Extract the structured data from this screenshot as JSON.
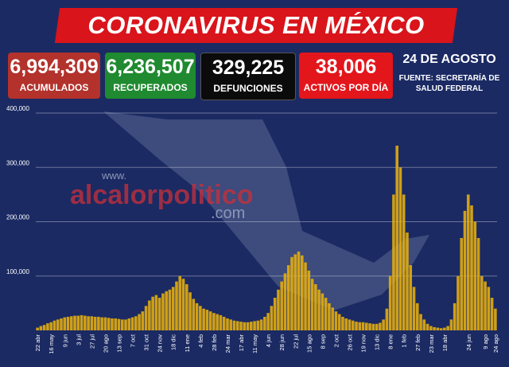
{
  "header": {
    "title": "CORONAVIRUS EN MÉXICO"
  },
  "stats": [
    {
      "value": "6,994,309",
      "label": "ACUMULADOS",
      "color": "#b3322c"
    },
    {
      "value": "6,236,507",
      "label": "RECUPERADOS",
      "color": "#1f8a2f"
    },
    {
      "value": "329,225",
      "label": "DEFUNCIONES",
      "color": "#0b0b0b"
    },
    {
      "value": "38,006",
      "label": "ACTIVOS POR DÍA",
      "color": "#e3161c"
    }
  ],
  "date": "24 DE AGOSTO",
  "source": "FUENTE: SECRETARÍA DE SALUD FEDERAL",
  "watermark": {
    "prefix": "www.",
    "name": "alcalorpolitico",
    "suffix": ".com"
  },
  "chart_data": {
    "type": "bar",
    "color": "#e8b10c",
    "grid": true,
    "ylim": [
      0,
      400000
    ],
    "yticks": [
      {
        "value": 100000,
        "label": "100,000"
      },
      {
        "value": 200000,
        "label": "200,000"
      },
      {
        "value": 300000,
        "label": "300,000"
      },
      {
        "value": 400000,
        "label": "400,000"
      }
    ],
    "categories": [
      "22 abr",
      null,
      null,
      null,
      "16 may",
      null,
      null,
      null,
      "9 jun",
      null,
      null,
      null,
      "3 jul",
      null,
      null,
      null,
      "27 jul",
      null,
      null,
      null,
      "20 ago",
      null,
      null,
      null,
      "13 sep",
      null,
      null,
      null,
      "7 oct",
      null,
      null,
      null,
      "31 oct",
      null,
      null,
      null,
      "24 nov",
      null,
      null,
      null,
      "18 dic",
      null,
      null,
      null,
      "11 ene",
      null,
      null,
      null,
      "4 feb",
      null,
      null,
      null,
      "28 feb",
      null,
      null,
      null,
      "24 mar",
      null,
      null,
      null,
      "17 abr",
      null,
      null,
      null,
      "11 may",
      null,
      null,
      null,
      "4 jun",
      null,
      null,
      null,
      "28 jun",
      null,
      null,
      null,
      "22 jul",
      null,
      null,
      null,
      "15 ago",
      null,
      null,
      null,
      "8 sep",
      null,
      null,
      null,
      "2 oct",
      null,
      null,
      null,
      "26 oct",
      null,
      null,
      null,
      "19 nov",
      null,
      null,
      null,
      "13 dic",
      null,
      null,
      null,
      "8 ene",
      null,
      null,
      null,
      "1 feb",
      null,
      null,
      null,
      "27 feb",
      null,
      null,
      null,
      "23 mar",
      null,
      null,
      null,
      "18 abr",
      null,
      null,
      null,
      null,
      null,
      null,
      "24 jun",
      null,
      null,
      null,
      null,
      "9 ago",
      null,
      null,
      "24 ago"
    ],
    "values": [
      5000,
      8000,
      10000,
      13000,
      15000,
      18000,
      20000,
      22000,
      24000,
      25000,
      26000,
      27000,
      27000,
      28000,
      27000,
      26000,
      26000,
      25000,
      25000,
      24000,
      24000,
      23000,
      22000,
      22000,
      21000,
      20000,
      20000,
      22000,
      24000,
      26000,
      30000,
      35000,
      45000,
      55000,
      62000,
      65000,
      60000,
      68000,
      72000,
      75000,
      80000,
      90000,
      100000,
      95000,
      85000,
      70000,
      58000,
      50000,
      45000,
      40000,
      38000,
      35000,
      32000,
      30000,
      28000,
      25000,
      22000,
      20000,
      18000,
      17000,
      16000,
      15000,
      15000,
      16000,
      17000,
      18000,
      20000,
      25000,
      32000,
      45000,
      60000,
      75000,
      90000,
      105000,
      120000,
      135000,
      140000,
      145000,
      138000,
      125000,
      110000,
      95000,
      85000,
      75000,
      68000,
      60000,
      50000,
      42000,
      35000,
      30000,
      25000,
      22000,
      20000,
      18000,
      16000,
      15000,
      15000,
      14000,
      13000,
      12000,
      12000,
      14000,
      20000,
      40000,
      100000,
      250000,
      340000,
      300000,
      250000,
      180000,
      120000,
      80000,
      50000,
      30000,
      20000,
      12000,
      8000,
      6000,
      5000,
      4000,
      5000,
      8000,
      20000,
      50000,
      100000,
      170000,
      220000,
      250000,
      230000,
      200000,
      170000,
      100000,
      90000,
      80000,
      60000,
      40000
    ]
  }
}
